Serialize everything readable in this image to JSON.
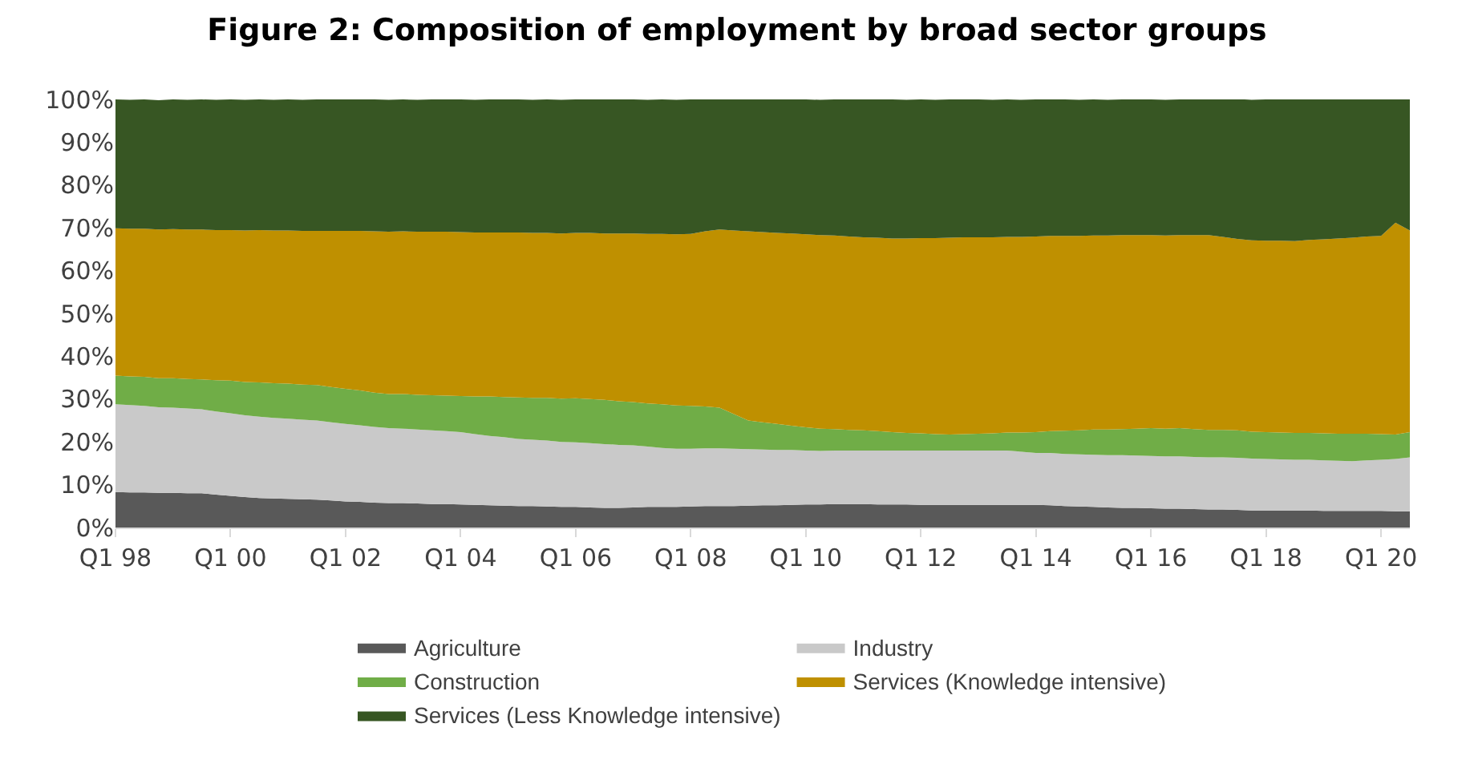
{
  "chart_data": {
    "type": "area",
    "stacked": true,
    "title": "Figure 2: Composition of employment by broad sector groups",
    "categories": [
      "Q1 98",
      null,
      null,
      null,
      null,
      null,
      null,
      null,
      "Q1 00",
      null,
      null,
      null,
      null,
      null,
      null,
      null,
      "Q1 02",
      null,
      null,
      null,
      null,
      null,
      null,
      null,
      "Q1 04",
      null,
      null,
      null,
      null,
      null,
      null,
      null,
      "Q1 06",
      null,
      null,
      null,
      null,
      null,
      null,
      null,
      "Q1 08",
      null,
      null,
      null,
      null,
      null,
      null,
      null,
      "Q1 10",
      null,
      null,
      null,
      null,
      null,
      null,
      null,
      "Q1 12",
      null,
      null,
      null,
      null,
      null,
      null,
      null,
      "Q1 14",
      null,
      null,
      null,
      null,
      null,
      null,
      null,
      "Q1 16",
      null,
      null,
      null,
      null,
      null,
      null,
      null,
      "Q1 18",
      null,
      null,
      null,
      null,
      null,
      null,
      null,
      "Q1 20",
      null,
      null
    ],
    "ylim": [
      0,
      100
    ],
    "yticks": [
      {
        "value": 0,
        "label": "0%"
      },
      {
        "value": 10,
        "label": "10%"
      },
      {
        "value": 20,
        "label": "20%"
      },
      {
        "value": 30,
        "label": "30%"
      },
      {
        "value": 40,
        "label": "40%"
      },
      {
        "value": 50,
        "label": "50%"
      },
      {
        "value": 60,
        "label": "60%"
      },
      {
        "value": 70,
        "label": "70%"
      },
      {
        "value": 80,
        "label": "80%"
      },
      {
        "value": 90,
        "label": "90%"
      },
      {
        "value": 100,
        "label": "100%"
      }
    ],
    "legend": "bottom",
    "series": [
      {
        "name": "Agriculture",
        "color": "#595959",
        "values": [
          8.3,
          8.2,
          8.2,
          8.1,
          8.1,
          8.0,
          8.0,
          7.7,
          7.4,
          7.1,
          6.9,
          6.8,
          6.7,
          6.6,
          6.5,
          6.3,
          6.1,
          6.0,
          5.8,
          5.7,
          5.7,
          5.6,
          5.5,
          5.5,
          5.4,
          5.3,
          5.2,
          5.1,
          5.0,
          5.0,
          4.9,
          4.8,
          4.8,
          4.7,
          4.6,
          4.6,
          4.7,
          4.8,
          4.8,
          4.8,
          4.9,
          5.0,
          5.0,
          5.0,
          5.1,
          5.2,
          5.2,
          5.3,
          5.4,
          5.4,
          5.5,
          5.5,
          5.5,
          5.4,
          5.4,
          5.4,
          5.3,
          5.3,
          5.3,
          5.3,
          5.3,
          5.3,
          5.3,
          5.3,
          5.3,
          5.2,
          5.0,
          4.9,
          4.8,
          4.7,
          4.6,
          4.6,
          4.5,
          4.4,
          4.4,
          4.3,
          4.2,
          4.2,
          4.1,
          4.0,
          4.0,
          4.0,
          4.0,
          4.0,
          3.9,
          3.9,
          3.9,
          3.9,
          3.9,
          3.8,
          3.8
        ]
      },
      {
        "name": "Industry",
        "color": "#c9c9c9",
        "values": [
          20.5,
          20.4,
          20.2,
          20.0,
          19.9,
          19.8,
          19.6,
          19.4,
          19.3,
          19.1,
          19.0,
          18.8,
          18.7,
          18.6,
          18.5,
          18.3,
          18.1,
          17.9,
          17.7,
          17.5,
          17.4,
          17.3,
          17.2,
          17.0,
          16.9,
          16.5,
          16.2,
          16.0,
          15.7,
          15.5,
          15.4,
          15.2,
          15.1,
          15.0,
          14.9,
          14.7,
          14.5,
          14.1,
          13.8,
          13.6,
          13.5,
          13.5,
          13.5,
          13.4,
          13.2,
          13.0,
          12.9,
          12.8,
          12.6,
          12.5,
          12.5,
          12.5,
          12.5,
          12.6,
          12.6,
          12.6,
          12.7,
          12.7,
          12.7,
          12.7,
          12.7,
          12.7,
          12.7,
          12.4,
          12.1,
          12.2,
          12.2,
          12.2,
          12.2,
          12.2,
          12.3,
          12.2,
          12.2,
          12.2,
          12.2,
          12.2,
          12.2,
          12.2,
          12.2,
          12.1,
          12.0,
          11.9,
          11.8,
          11.8,
          11.8,
          11.7,
          11.6,
          11.8,
          11.9,
          12.2,
          12.6
        ]
      },
      {
        "name": "Construction",
        "color": "#70ad47",
        "values": [
          6.7,
          6.7,
          6.8,
          6.8,
          6.9,
          6.9,
          7.0,
          7.3,
          7.6,
          7.8,
          8.0,
          8.1,
          8.2,
          8.2,
          8.3,
          8.2,
          8.2,
          8.1,
          8.0,
          8.0,
          8.1,
          8.1,
          8.2,
          8.3,
          8.4,
          8.8,
          9.2,
          9.4,
          9.7,
          9.8,
          10.0,
          10.1,
          10.3,
          10.3,
          10.3,
          10.2,
          10.1,
          10.1,
          10.2,
          10.1,
          10.0,
          9.8,
          9.5,
          8.1,
          6.7,
          6.4,
          6.1,
          5.7,
          5.4,
          5.2,
          5.0,
          4.8,
          4.7,
          4.5,
          4.3,
          4.1,
          4.0,
          3.8,
          3.7,
          3.8,
          3.9,
          4.0,
          4.2,
          4.5,
          4.9,
          5.1,
          5.4,
          5.6,
          5.9,
          6.0,
          6.1,
          6.3,
          6.5,
          6.5,
          6.6,
          6.5,
          6.4,
          6.4,
          6.4,
          6.3,
          6.3,
          6.3,
          6.3,
          6.3,
          6.3,
          6.3,
          6.4,
          6.2,
          6.0,
          5.7,
          5.9
        ]
      },
      {
        "name": "Services (Knowledge intensive)",
        "color": "#bf9000",
        "values": [
          34.4,
          34.5,
          34.6,
          34.7,
          34.8,
          34.9,
          35.0,
          35.1,
          35.2,
          35.4,
          35.6,
          35.7,
          35.8,
          35.9,
          36.0,
          36.5,
          36.9,
          37.3,
          37.7,
          37.9,
          38.0,
          38.1,
          38.2,
          38.3,
          38.3,
          38.3,
          38.3,
          38.4,
          38.5,
          38.5,
          38.5,
          38.6,
          38.6,
          38.8,
          38.9,
          39.2,
          39.4,
          39.6,
          39.8,
          40.0,
          40.2,
          40.9,
          41.6,
          42.9,
          44.2,
          44.4,
          44.6,
          44.9,
          45.1,
          45.2,
          45.2,
          45.2,
          45.1,
          45.2,
          45.2,
          45.4,
          45.6,
          45.8,
          46.0,
          46.0,
          45.9,
          45.8,
          45.7,
          45.7,
          45.7,
          45.6,
          45.5,
          45.4,
          45.3,
          45.3,
          45.3,
          45.2,
          45.1,
          45.1,
          45.1,
          45.3,
          45.5,
          45.1,
          44.7,
          44.7,
          44.7,
          44.8,
          44.8,
          45.1,
          45.3,
          45.6,
          45.8,
          46.1,
          46.3,
          49.5,
          47.1
        ]
      },
      {
        "name": "Services (Less Knowledge intensive)",
        "color": "#375623",
        "values": [
          30.1,
          30.1,
          30.2,
          30.2,
          30.3,
          30.3,
          30.4,
          30.4,
          30.5,
          30.5,
          30.5,
          30.5,
          30.6,
          30.6,
          30.7,
          30.7,
          30.7,
          30.7,
          30.8,
          30.8,
          30.8,
          30.8,
          30.9,
          30.9,
          31.0,
          31.0,
          31.1,
          31.1,
          31.1,
          31.1,
          31.2,
          31.2,
          31.2,
          31.2,
          31.3,
          31.3,
          31.3,
          31.3,
          31.4,
          31.4,
          31.4,
          30.9,
          30.4,
          30.6,
          30.8,
          31.0,
          31.2,
          31.3,
          31.5,
          31.6,
          31.8,
          32.0,
          32.2,
          32.3,
          32.5,
          32.4,
          32.4,
          32.3,
          32.3,
          32.2,
          32.2,
          32.1,
          32.1,
          32.0,
          32.0,
          31.9,
          31.9,
          31.8,
          31.8,
          31.7,
          31.7,
          31.7,
          31.7,
          31.7,
          31.7,
          31.7,
          31.7,
          32.2,
          32.7,
          32.8,
          33.0,
          33.0,
          33.1,
          32.9,
          32.7,
          32.5,
          32.3,
          32.1,
          31.9,
          28.8,
          30.6
        ]
      }
    ]
  }
}
